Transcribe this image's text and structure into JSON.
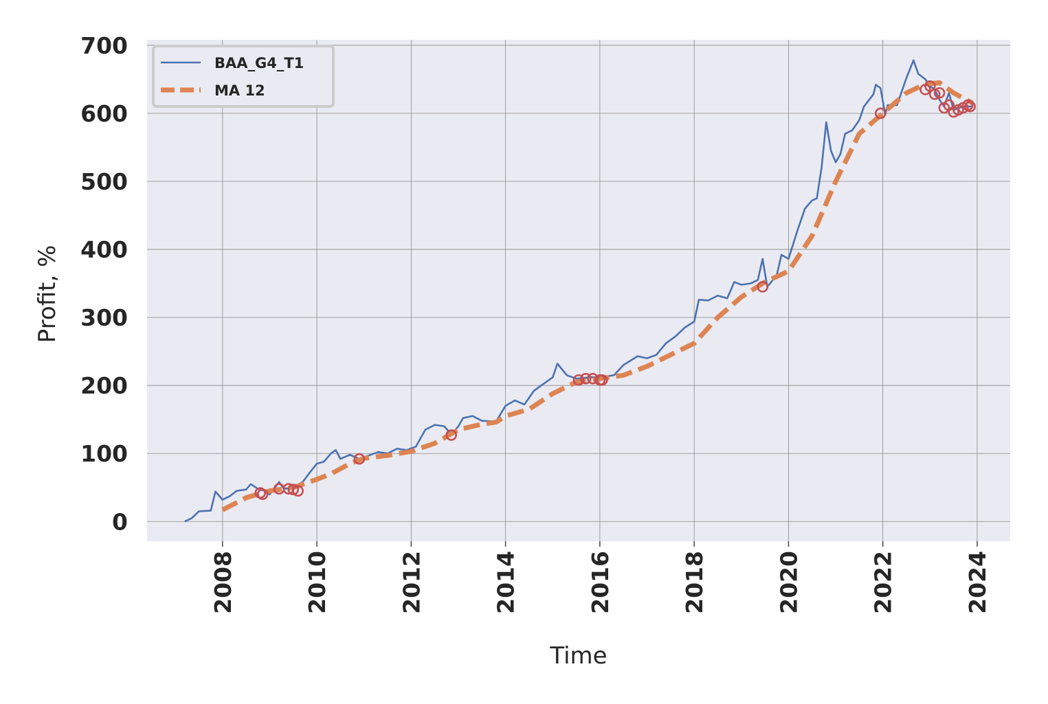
{
  "chart_data": {
    "type": "line",
    "xlabel": "Time",
    "ylabel": "Profit, %",
    "xlim": [
      2006.4,
      2024.7
    ],
    "ylim": [
      -29,
      708
    ],
    "xticks": [
      2008,
      2010,
      2012,
      2014,
      2016,
      2018,
      2020,
      2022,
      2024
    ],
    "yticks": [
      0,
      100,
      200,
      300,
      400,
      500,
      600,
      700
    ],
    "grid": true,
    "legend": "upper left",
    "series": [
      {
        "name": "BAA_G4_T1",
        "color": "#4c72b0",
        "style": "solid",
        "x": [
          2007.2,
          2007.35,
          2007.5,
          2007.75,
          2007.85,
          2008.0,
          2008.15,
          2008.3,
          2008.5,
          2008.6,
          2008.75,
          2008.9,
          2009.0,
          2009.2,
          2009.3,
          2009.5,
          2009.7,
          2009.85,
          2010.0,
          2010.15,
          2010.3,
          2010.4,
          2010.5,
          2010.7,
          2010.9,
          2011.1,
          2011.3,
          2011.5,
          2011.7,
          2011.9,
          2012.1,
          2012.3,
          2012.5,
          2012.7,
          2012.85,
          2013.0,
          2013.1,
          2013.3,
          2013.5,
          2013.8,
          2014.0,
          2014.2,
          2014.4,
          2014.6,
          2014.8,
          2015.0,
          2015.1,
          2015.3,
          2015.5,
          2015.8,
          2016.0,
          2016.3,
          2016.5,
          2016.8,
          2017.0,
          2017.2,
          2017.4,
          2017.6,
          2017.8,
          2018.0,
          2018.1,
          2018.3,
          2018.5,
          2018.7,
          2018.85,
          2019.0,
          2019.2,
          2019.35,
          2019.45,
          2019.55,
          2019.75,
          2019.85,
          2020.0,
          2020.2,
          2020.35,
          2020.5,
          2020.6,
          2020.7,
          2020.8,
          2020.9,
          2021.0,
          2021.1,
          2021.2,
          2021.35,
          2021.5,
          2021.6,
          2021.8,
          2021.85,
          2021.95,
          2022.05,
          2022.1,
          2022.3,
          2022.5,
          2022.65,
          2022.75,
          2022.9,
          2023.0,
          2023.1,
          2023.2,
          2023.3,
          2023.4,
          2023.5,
          2023.7,
          2023.9
        ],
        "values": [
          0,
          5,
          15,
          16,
          44,
          32,
          37,
          45,
          47,
          55,
          48,
          45,
          40,
          58,
          48,
          50,
          58,
          72,
          85,
          88,
          100,
          105,
          92,
          98,
          92,
          97,
          102,
          100,
          107,
          105,
          110,
          135,
          142,
          140,
          128,
          140,
          152,
          155,
          148,
          147,
          170,
          178,
          172,
          192,
          202,
          212,
          232,
          215,
          210,
          212,
          212,
          215,
          230,
          243,
          240,
          245,
          262,
          272,
          285,
          294,
          326,
          325,
          332,
          328,
          352,
          348,
          350,
          355,
          386,
          345,
          362,
          392,
          386,
          430,
          460,
          472,
          475,
          520,
          587,
          545,
          528,
          540,
          570,
          575,
          590,
          610,
          628,
          642,
          637,
          598,
          612,
          612,
          652,
          678,
          658,
          650,
          640,
          635,
          620,
          610,
          630,
          605,
          610,
          610
        ]
      },
      {
        "name": "MA 12",
        "color": "#dd8452",
        "style": "dashed",
        "x": [
          2008.0,
          2008.5,
          2009.0,
          2009.5,
          2010.0,
          2010.3,
          2010.7,
          2011.0,
          2011.5,
          2012.0,
          2012.5,
          2013.0,
          2013.5,
          2013.8,
          2014.0,
          2014.5,
          2015.0,
          2015.5,
          2016.0,
          2016.5,
          2017.0,
          2017.5,
          2018.0,
          2018.5,
          2019.0,
          2019.5,
          2020.0,
          2020.5,
          2021.0,
          2021.5,
          2022.0,
          2022.5,
          2022.9,
          2023.2,
          2023.5,
          2023.9
        ],
        "values": [
          17,
          35,
          45,
          50,
          62,
          70,
          85,
          93,
          97,
          103,
          115,
          135,
          143,
          146,
          155,
          165,
          188,
          205,
          210,
          215,
          228,
          245,
          262,
          300,
          330,
          352,
          368,
          420,
          500,
          570,
          600,
          630,
          643,
          645,
          630,
          615
        ]
      }
    ],
    "markers": {
      "color": "#c44e52",
      "x": [
        2008.8,
        2008.85,
        2009.2,
        2009.4,
        2009.5,
        2009.6,
        2010.9,
        2012.85,
        2015.55,
        2015.7,
        2015.85,
        2016.0,
        2016.05,
        2019.45,
        2021.95,
        2022.9,
        2023.0,
        2023.1,
        2023.2,
        2023.3,
        2023.4,
        2023.5,
        2023.6,
        2023.7,
        2023.8,
        2023.85
      ],
      "values": [
        42,
        40,
        48,
        48,
        47,
        45,
        92,
        127,
        208,
        210,
        210,
        208,
        208,
        345,
        600,
        635,
        640,
        628,
        630,
        608,
        612,
        602,
        605,
        608,
        612,
        610
      ]
    }
  }
}
